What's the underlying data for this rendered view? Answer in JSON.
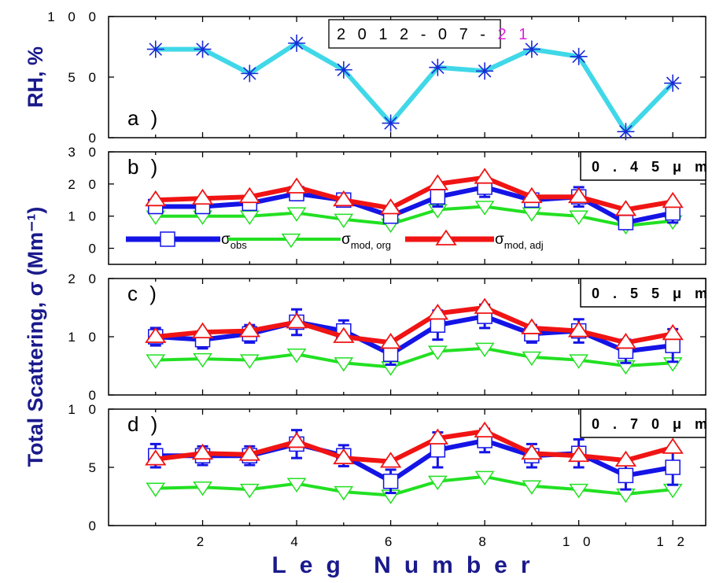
{
  "chart_data": {
    "type": "line",
    "x_label": "Leg Number",
    "y_label_shared": "Total Scattering, σ (Mm⁻¹)",
    "x_ticks": [
      "2",
      "4",
      "6",
      "8",
      "1 0",
      "1 2"
    ],
    "x_tick_values": [
      2,
      4,
      6,
      8,
      10,
      12
    ],
    "xlim": [
      0,
      12.7
    ],
    "legend_labels": {
      "obs_base": "σ",
      "obs_sub": "obs",
      "org_base": "σ",
      "org_sub": "mod, org",
      "adj_base": "σ",
      "adj_sub": "mod, adj"
    },
    "colors": {
      "rh": "#40d8e8",
      "rh_marker": "#1a2ad6",
      "obs": "#1414e6",
      "org": "#22e022",
      "adj": "#f01414",
      "axis_title": "#1a1a8c",
      "date_highlight": "#e020e0"
    },
    "panels": [
      {
        "id": "a",
        "panel_label": "a )",
        "y_label": "RH, %",
        "ylim": [
          0,
          100
        ],
        "y_ticks": [
          0,
          50,
          100
        ],
        "y_tick_labels": [
          "0",
          "5 0",
          "1 0 0"
        ],
        "date_box": {
          "prefix": "2 0 1 2 - 0 7 - ",
          "highlight": "2 1"
        },
        "series": [
          {
            "kind": "rh",
            "x": [
              1,
              2,
              3,
              4,
              5,
              6,
              7,
              8,
              9,
              10,
              11,
              12
            ],
            "values": [
              73,
              73,
              53,
              78,
              56,
              12,
              58,
              55,
              73,
              67,
              5,
              45
            ]
          }
        ]
      },
      {
        "id": "b",
        "panel_label": "b )",
        "wavelength_label": "0 . 4 5   μ m",
        "ylim": [
          -5,
          30
        ],
        "y_ticks": [
          0,
          10,
          20,
          30
        ],
        "y_tick_labels": [
          "0",
          "1 0",
          "2 0",
          "3 0"
        ],
        "series": [
          {
            "kind": "obs",
            "x": [
              1,
              2,
              3,
              4,
              5,
              6,
              7,
              8,
              9,
              10,
              11,
              12
            ],
            "values": [
              13,
              13,
              14,
              17,
              15,
              10,
              16,
              19,
              15,
              16,
              8,
              11
            ],
            "err": [
              2,
              2,
              2,
              2,
              2,
              2,
              3,
              3,
              2,
              3,
              2,
              3
            ]
          },
          {
            "kind": "org",
            "x": [
              1,
              2,
              3,
              4,
              5,
              6,
              7,
              8,
              9,
              10,
              11,
              12
            ],
            "values": [
              10,
              10,
              10,
              11,
              9,
              7.5,
              12,
              13,
              11,
              10,
              7,
              8.5
            ]
          },
          {
            "kind": "adj",
            "x": [
              1,
              2,
              3,
              4,
              5,
              6,
              7,
              8,
              9,
              10,
              11,
              12
            ],
            "values": [
              15,
              15.5,
              16,
              19,
              15,
              12.5,
              20,
              22,
              16,
              16,
              12,
              14.5
            ]
          }
        ]
      },
      {
        "id": "c",
        "panel_label": "c )",
        "wavelength_label": "0 . 5 5   μ m",
        "ylim": [
          0,
          20
        ],
        "y_ticks": [
          0,
          10,
          20
        ],
        "y_tick_labels": [
          "0",
          "1 0",
          "2 0"
        ],
        "series": [
          {
            "kind": "obs",
            "x": [
              1,
              2,
              3,
              4,
              5,
              6,
              7,
              8,
              9,
              10,
              11,
              12
            ],
            "values": [
              10,
              9.5,
              10.5,
              12.5,
              11,
              7,
              12,
              13.5,
              10.5,
              11,
              7.5,
              8.5
            ],
            "err": [
              1.5,
              1.5,
              1.5,
              2.2,
              1.8,
              1.8,
              2.5,
              2,
              1.5,
              2,
              2,
              2.8
            ]
          },
          {
            "kind": "org",
            "x": [
              1,
              2,
              3,
              4,
              5,
              6,
              7,
              8,
              9,
              10,
              11,
              12
            ],
            "values": [
              6,
              6.2,
              6,
              7,
              5.5,
              4.8,
              7.5,
              8,
              6.5,
              6,
              5,
              5.5
            ]
          },
          {
            "kind": "adj",
            "x": [
              1,
              2,
              3,
              4,
              5,
              6,
              7,
              8,
              9,
              10,
              11,
              12
            ],
            "values": [
              10,
              10.8,
              11,
              12.5,
              10,
              9,
              14,
              15,
              11.5,
              11,
              9,
              10.5
            ]
          }
        ]
      },
      {
        "id": "d",
        "panel_label": "d )",
        "wavelength_label": "0 . 7 0   μ m",
        "ylim": [
          0,
          10
        ],
        "y_ticks": [
          0,
          5,
          10
        ],
        "y_tick_labels": [
          "0",
          "5",
          "1 0"
        ],
        "series": [
          {
            "kind": "obs",
            "x": [
              1,
              2,
              3,
              4,
              5,
              6,
              7,
              8,
              9,
              10,
              11,
              12
            ],
            "values": [
              6,
              6,
              6,
              7,
              6,
              3.8,
              6.5,
              7.3,
              6,
              6.2,
              4.3,
              5
            ],
            "err": [
              1,
              0.8,
              0.8,
              1.2,
              0.9,
              1,
              1.5,
              1,
              1,
              1.2,
              1.2,
              1.5
            ]
          },
          {
            "kind": "org",
            "x": [
              1,
              2,
              3,
              4,
              5,
              6,
              7,
              8,
              9,
              10,
              11,
              12
            ],
            "values": [
              3.2,
              3.3,
              3.1,
              3.6,
              2.9,
              2.6,
              3.8,
              4.2,
              3.4,
              3.1,
              2.7,
              3.1
            ]
          },
          {
            "kind": "adj",
            "x": [
              1,
              2,
              3,
              4,
              5,
              6,
              7,
              8,
              9,
              10,
              11,
              12
            ],
            "values": [
              5.7,
              6.2,
              6.1,
              7.2,
              5.8,
              5.5,
              7.5,
              8.1,
              6.2,
              6,
              5.6,
              6.7
            ]
          }
        ]
      }
    ]
  }
}
